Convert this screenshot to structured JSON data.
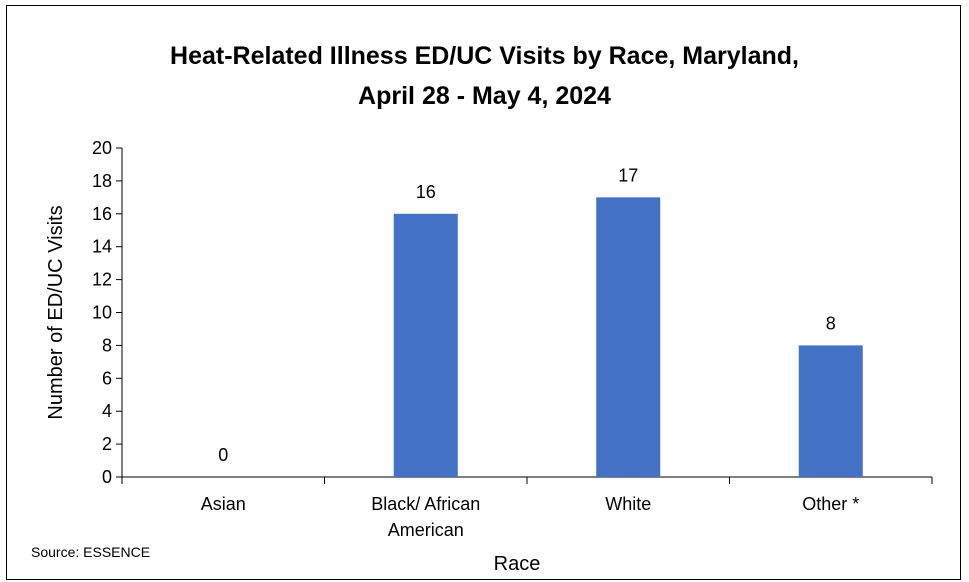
{
  "chart_data": {
    "type": "bar",
    "title_line1": "Heat-Related Illness ED/UC Visits by Race, Maryland,",
    "title_line2": "April 28 - May 4, 2024",
    "xlabel": "Race",
    "ylabel": "Number of ED/UC Visits",
    "categories": [
      "Asian",
      "Black/ African American",
      "White",
      "Other *"
    ],
    "category_lines": [
      [
        "Asian"
      ],
      [
        "Black/ African",
        "American"
      ],
      [
        "White"
      ],
      [
        "Other *"
      ]
    ],
    "values": [
      0,
      16,
      17,
      8
    ],
    "data_labels": [
      "0",
      "16",
      "17",
      "8"
    ],
    "ylim": [
      0,
      20
    ],
    "yticks": [
      0,
      2,
      4,
      6,
      8,
      10,
      12,
      14,
      16,
      18,
      20
    ],
    "grid": false,
    "legend": "none",
    "bar_color": "#4472C4"
  },
  "source_note": "Source: ESSENCE"
}
